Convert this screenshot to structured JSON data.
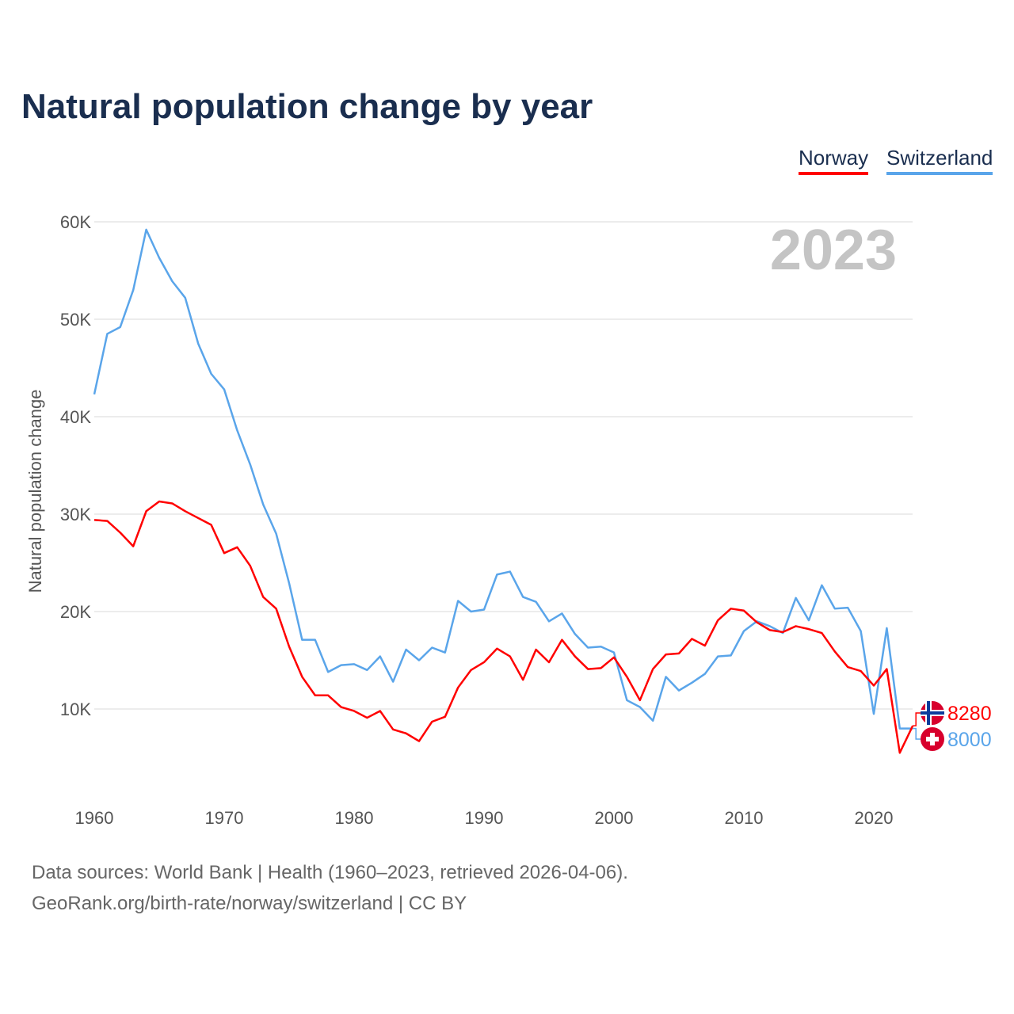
{
  "chart_data": {
    "type": "line",
    "title": "Natural population change by year",
    "xlabel": "",
    "ylabel": "Natural population change",
    "xlim": [
      1960,
      2023
    ],
    "ylim": [
      0,
      60000
    ],
    "x_ticks": [
      "1960",
      "1970",
      "1980",
      "1990",
      "2000",
      "2010",
      "2020"
    ],
    "y_ticks": [
      "10K",
      "20K",
      "30K",
      "40K",
      "50K",
      "60K"
    ],
    "y_tick_values": [
      10000,
      20000,
      30000,
      40000,
      50000,
      60000
    ],
    "grid": true,
    "legend_position": "top-right",
    "year_label": "2023",
    "x": [
      1960,
      1961,
      1962,
      1963,
      1964,
      1965,
      1966,
      1967,
      1968,
      1969,
      1970,
      1971,
      1972,
      1973,
      1974,
      1975,
      1976,
      1977,
      1978,
      1979,
      1980,
      1981,
      1982,
      1983,
      1984,
      1985,
      1986,
      1987,
      1988,
      1989,
      1990,
      1991,
      1992,
      1993,
      1994,
      1995,
      1996,
      1997,
      1998,
      1999,
      2000,
      2001,
      2002,
      2003,
      2004,
      2005,
      2006,
      2007,
      2008,
      2009,
      2010,
      2011,
      2012,
      2013,
      2014,
      2015,
      2016,
      2017,
      2018,
      2019,
      2020,
      2021,
      2022,
      2023
    ],
    "series": [
      {
        "name": "Norway",
        "color": "#ff0000",
        "end_label": "8280",
        "flag": "norway-flag",
        "values": [
          29400,
          29300,
          28100,
          26700,
          30300,
          31300,
          31100,
          30300,
          29600,
          28900,
          26000,
          26600,
          24700,
          21500,
          20300,
          16400,
          13300,
          11400,
          11400,
          10200,
          9800,
          9100,
          9800,
          7900,
          7500,
          6700,
          8700,
          9200,
          12200,
          14000,
          14800,
          16200,
          15400,
          13000,
          16100,
          14800,
          17100,
          15400,
          14100,
          14200,
          15300,
          13300,
          10900,
          14100,
          15600,
          15700,
          17200,
          16500,
          19100,
          20300,
          20100,
          18900,
          18100,
          17900,
          18500,
          18200,
          17800,
          15900,
          14300,
          13900,
          12400,
          14100,
          5500,
          8280
        ]
      },
      {
        "name": "Switzerland",
        "color": "#5aa5ea",
        "end_label": "8000",
        "flag": "switzerland-flag",
        "values": [
          42300,
          48500,
          49200,
          53000,
          59200,
          56300,
          53900,
          52200,
          47500,
          44400,
          42800,
          38600,
          35100,
          31000,
          28000,
          22900,
          17100,
          17100,
          13800,
          14500,
          14600,
          14000,
          15400,
          12800,
          16100,
          15000,
          16300,
          15800,
          21100,
          20000,
          20200,
          23800,
          24100,
          21500,
          21000,
          19000,
          19800,
          17700,
          16300,
          16400,
          15800,
          10900,
          10200,
          8800,
          13300,
          11900,
          12700,
          13600,
          15400,
          15500,
          18000,
          19000,
          18500,
          17800,
          21400,
          19100,
          22700,
          20300,
          20400,
          18000,
          9500,
          18300,
          8000,
          8000
        ]
      }
    ]
  },
  "footer": {
    "source_line": "Data sources: World Bank | Health (1960–2023, retrieved 2026-04-06).",
    "credit_line": "GeoRank.org/birth-rate/norway/switzerland | CC BY"
  }
}
